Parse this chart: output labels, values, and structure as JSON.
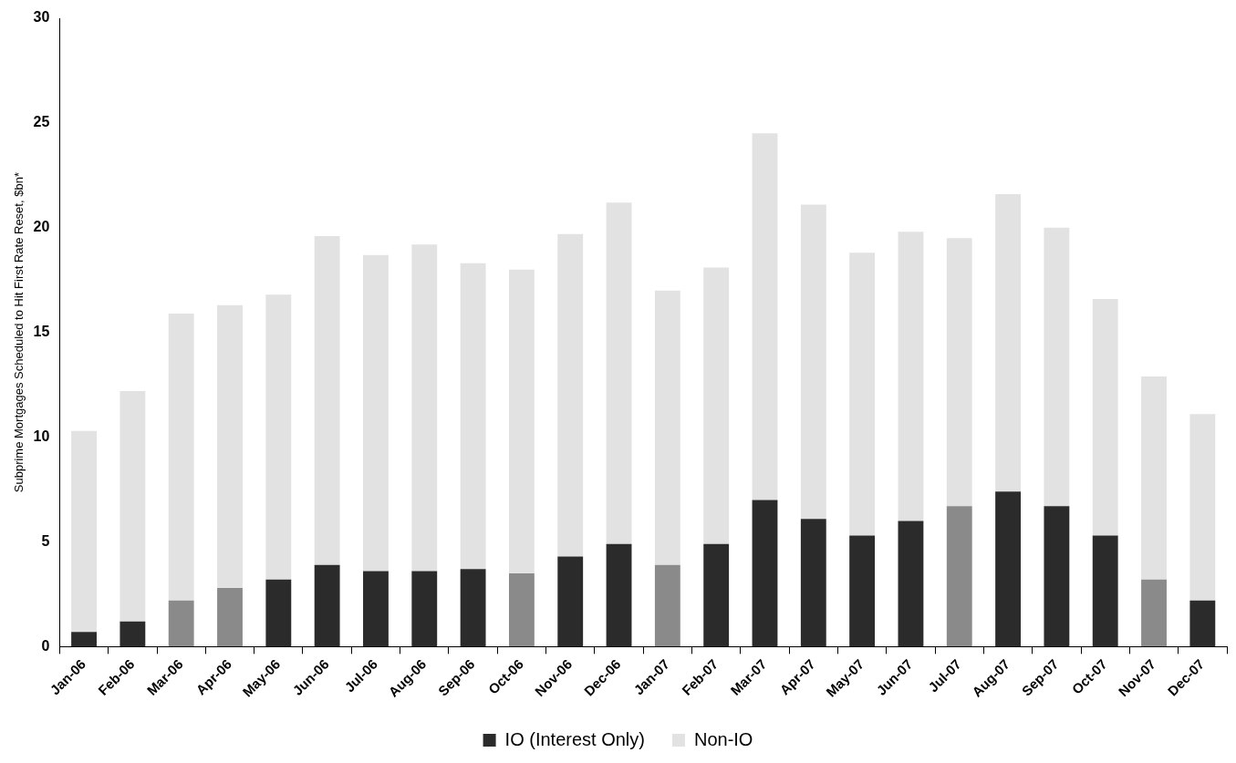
{
  "chart_data": {
    "type": "bar",
    "stacked": true,
    "ylabel": "Subprime Mortgages Scheduled to Hit First Rate Reset, $bn*",
    "categories": [
      "Jan-06",
      "Feb-06",
      "Mar-06",
      "Apr-06",
      "May-06",
      "Jun-06",
      "Jul-06",
      "Aug-06",
      "Sep-06",
      "Oct-06",
      "Nov-06",
      "Dec-06",
      "Jan-07",
      "Feb-07",
      "Mar-07",
      "Apr-07",
      "May-07",
      "Jun-07",
      "Jul-07",
      "Aug-07",
      "Sep-07",
      "Oct-07",
      "Nov-07",
      "Dec-07"
    ],
    "series": [
      {
        "name": "IO (Interest Only)",
        "color": "#2b2b2b",
        "colors": [
          "#2b2b2b",
          "#2b2b2b",
          "#8a8a8a",
          "#8a8a8a",
          "#2b2b2b",
          "#2b2b2b",
          "#2b2b2b",
          "#2b2b2b",
          "#2b2b2b",
          "#8a8a8a",
          "#2b2b2b",
          "#2b2b2b",
          "#8a8a8a",
          "#2b2b2b",
          "#2b2b2b",
          "#2b2b2b",
          "#2b2b2b",
          "#2b2b2b",
          "#8a8a8a",
          "#2b2b2b",
          "#2b2b2b",
          "#2b2b2b",
          "#8a8a8a",
          "#2b2b2b"
        ],
        "values": [
          0.7,
          1.2,
          2.2,
          2.8,
          3.2,
          3.9,
          3.6,
          3.6,
          3.7,
          3.5,
          4.3,
          4.9,
          3.9,
          4.9,
          7.0,
          6.1,
          5.3,
          6.0,
          6.7,
          7.4,
          6.7,
          5.3,
          3.2,
          2.2
        ]
      },
      {
        "name": "Non-IO",
        "color": "#e2e2e2",
        "values": [
          9.6,
          11.0,
          13.7,
          13.5,
          13.6,
          15.7,
          15.1,
          15.6,
          14.6,
          14.5,
          15.4,
          16.3,
          13.1,
          13.2,
          17.5,
          15.0,
          13.5,
          13.8,
          12.8,
          14.2,
          13.3,
          11.3,
          9.7,
          8.9
        ]
      }
    ],
    "ylim": [
      0,
      30
    ],
    "yticks": [
      0,
      5,
      10,
      15,
      20,
      25,
      30
    ],
    "grid": false,
    "legend": "bottom"
  }
}
